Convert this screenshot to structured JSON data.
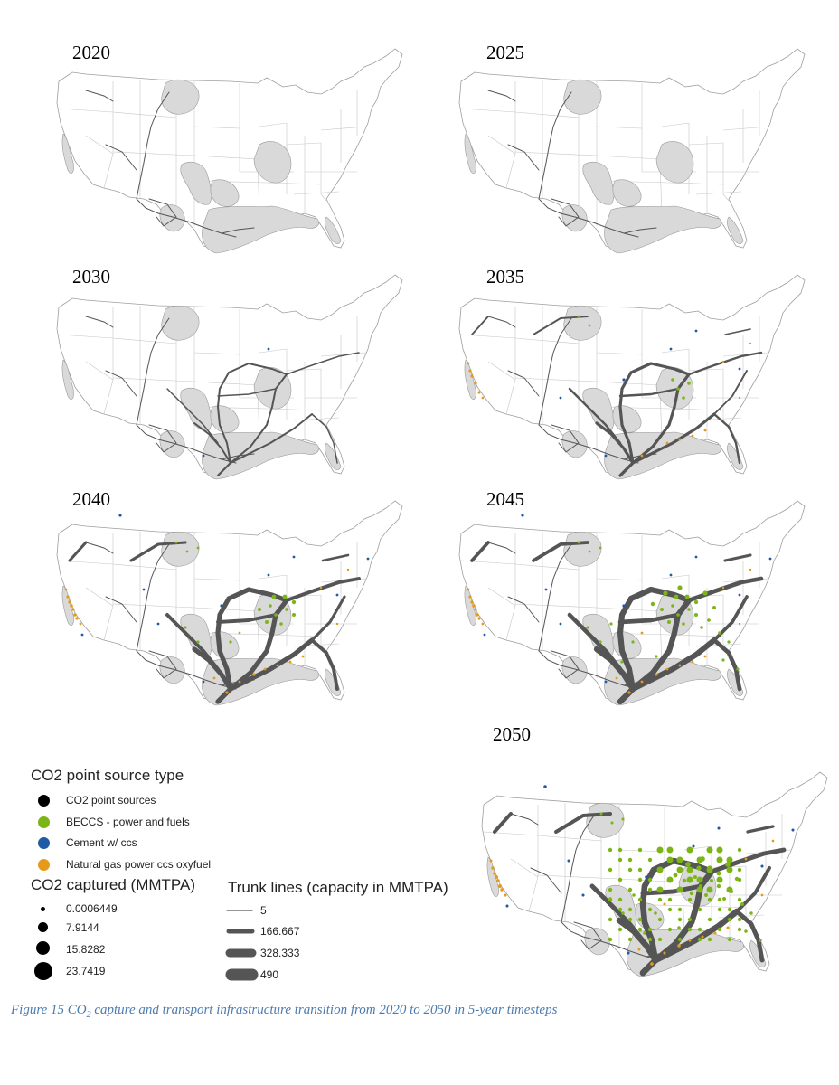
{
  "panels": [
    {
      "year": "2020"
    },
    {
      "year": "2025"
    },
    {
      "year": "2030"
    },
    {
      "year": "2035"
    },
    {
      "year": "2040"
    },
    {
      "year": "2045"
    },
    {
      "year": "2050"
    }
  ],
  "legend": {
    "source_type_title": "CO2 point source type",
    "source_types": [
      {
        "label": "CO2 point sources",
        "color": "#000000"
      },
      {
        "label": "BECCS - power and fuels",
        "color": "#7cb518"
      },
      {
        "label": "Cement w/ ccs",
        "color": "#1f5aa6"
      },
      {
        "label": "Natural gas power ccs oxyfuel",
        "color": "#e59a1a"
      }
    ],
    "captured_title": "CO2 captured (MMTPA)",
    "captured_sizes": [
      {
        "label": "0.0006449"
      },
      {
        "label": "7.9144"
      },
      {
        "label": "15.8282"
      },
      {
        "label": "23.7419"
      }
    ],
    "trunk_title": "Trunk lines (capacity in MMTPA)",
    "trunk_sizes": [
      {
        "label": "5"
      },
      {
        "label": "166.667"
      },
      {
        "label": "328.333"
      },
      {
        "label": "490"
      }
    ]
  },
  "caption": {
    "prefix": "Figure 15 CO",
    "subscript": "2",
    "suffix": " capture and transport infrastructure transition from 2020 to 2050 in 5-year timesteps"
  },
  "colors": {
    "pipeline": "#555555",
    "basin": "#d9d9d9",
    "state_lines": "#bdbdbd",
    "caption": "#4a7bb0"
  }
}
